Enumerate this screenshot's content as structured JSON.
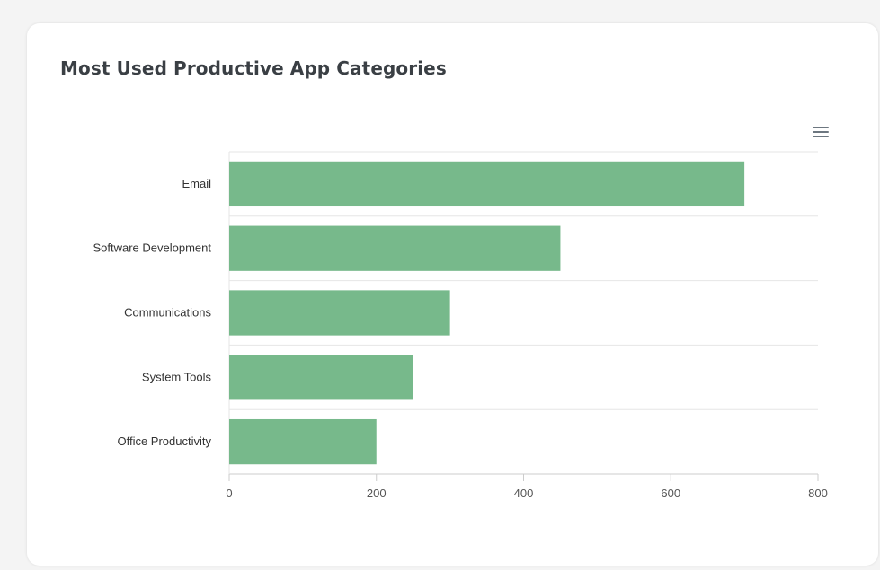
{
  "card": {
    "title": "Most Used Productive App Categories"
  },
  "menu": {
    "icon": "hamburger-menu-icon"
  },
  "chart_data": {
    "type": "bar",
    "orientation": "horizontal",
    "categories": [
      "Email",
      "Software Development",
      "Communications",
      "System Tools",
      "Office Productivity"
    ],
    "values": [
      700,
      450,
      300,
      250,
      200
    ],
    "xlim": [
      0,
      800
    ],
    "x_ticks": [
      0,
      200,
      400,
      600,
      800
    ],
    "x_tick_labels": [
      "0",
      "200",
      "400",
      "600",
      "800"
    ],
    "title": "",
    "xlabel": "",
    "ylabel": "",
    "grid": true,
    "legend": false,
    "colors": {
      "bar": "#77b98b",
      "grid": "#e6e6e6"
    }
  }
}
